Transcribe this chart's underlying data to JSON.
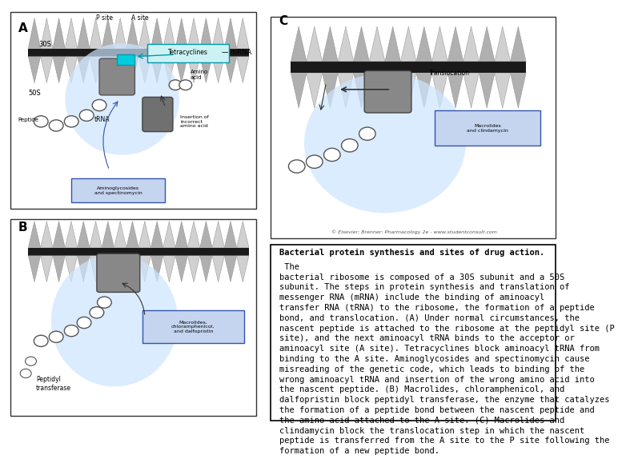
{
  "title_bold": "Bacterial protein synthesis and sites of drug action.",
  "title_normal": " The bacterial ribosome is composed of a 30S subunit and a 50S subunit. The steps in protein synthesis and translation of messenger RNA (mRNA) include the binding of aminoacyl transfer RNA (tRNA) to the ribosome, the formation of a peptide bond, and translocation. ",
  "bold_A": "(A)",
  "text_A": " Under normal circumstances, the nascent peptide is attached to the ribosome at the peptidyl site (P site), and the next aminoacyl tRNA binds to the acceptor or aminoacyl site (A site). Tetracyclines block aminoacyl tRNA from binding to the A site. Aminoglycosides and spectinomycin cause misreading of the genetic code, which leads to binding of the wrong aminoacyl tRNA and insertion of the wrong amino acid into the nascent peptide. ",
  "bold_B": "(B)",
  "text_B": " Macrolides, chloramphenicol, and dalfopristin block peptidyl transferase, the enzyme that catalyzes the formation of a peptide bond between the nascent peptide and the amino acid attached to the A site. ",
  "bold_C": "(C)",
  "text_C": " Macrolides and clindamycin block the translocation step in which the nascent peptide is transferred from the A site to the P site following the formation of a new peptide bond.",
  "bg_color": "#ffffff",
  "box_bg": "#ffffff",
  "box_border": "#000000",
  "text_color": "#000000",
  "font_size": 7.5,
  "title_font_size": 7.5,
  "fig_width": 7.2,
  "fig_height": 5.4,
  "left_panel_bg": "#ffffff",
  "diagram_border": "#000000"
}
